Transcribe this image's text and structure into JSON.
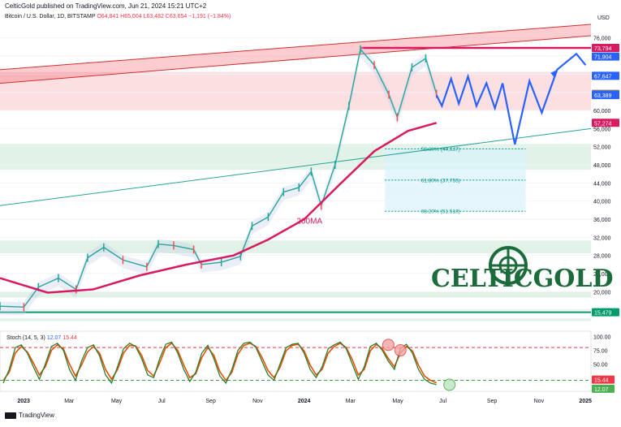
{
  "header": {
    "published": "CelticGold published on TradingView.com, Jun 21, 2024 15:21 UTC+2",
    "symbol": "Bitcoin / U.S. Dollar, 1D, BITSTAMP",
    "ohlc": "O64,841 H65,004 L63,482 C63,654 −1,191 (−1.84%)",
    "currency": "USD"
  },
  "footer": {
    "brand": "TradingView"
  },
  "logo": {
    "text": "CELTICGOLD"
  },
  "colors": {
    "price": "#26a69a",
    "bear": "#ef5350",
    "ma200": "#d81b60",
    "projection": "#2962ff",
    "resistance_band": "#f7b8bd",
    "support_band": "#c8ead2",
    "fib_box": "#d9f2fb",
    "stoch_line": "#2e7d32",
    "stoch_signal": "#e65100",
    "long_term_support": "#009c6b"
  },
  "chart_data": [
    {
      "type": "line",
      "title": "Bitcoin / U.S. Dollar, 1D, BITSTAMP",
      "x_axis_labels": [
        "2023",
        "Mar",
        "May",
        "Jul",
        "Sep",
        "Nov",
        "2024",
        "Mar",
        "May",
        "Jul",
        "Sep",
        "Nov",
        "2025"
      ],
      "y_ticks": [
        76000,
        72000,
        68000,
        64000,
        60000,
        56000,
        52000,
        48000,
        44000,
        40000,
        36000,
        32000,
        28000,
        24000,
        20000,
        16000
      ],
      "y_tick_labels": [
        "76,000",
        "72,000",
        "68,000",
        "64,000",
        "60,000",
        "56,000",
        "52,000",
        "48,000",
        "44,000",
        "40,000",
        "36,000",
        "32,000",
        "28,000",
        "24,000",
        "20,000",
        "16,000"
      ],
      "ylim": [
        12000,
        79000
      ],
      "series": [
        {
          "name": "",
          "x": [
            "2022-12-01",
            "2023-01-01",
            "2023-01-20",
            "2023-02-15",
            "2023-03-10",
            "2023-03-25",
            "2023-04-15",
            "2023-05-10",
            "2023-06-10",
            "2023-06-25",
            "2023-07-15",
            "2023-08-10",
            "2023-08-20",
            "2023-09-15",
            "2023-10-10",
            "2023-10-25",
            "2023-11-15",
            "2023-12-05",
            "2023-12-25",
            "2024-01-10",
            "2024-01-23",
            "2024-02-10",
            "2024-02-28",
            "2024-03-14",
            "2024-04-01",
            "2024-04-20",
            "2024-05-01",
            "2024-05-20",
            "2024-06-07",
            "2024-06-21"
          ],
          "values": [
            16800,
            16600,
            21000,
            23000,
            20500,
            27500,
            29800,
            27000,
            25500,
            30500,
            30200,
            29300,
            26000,
            26500,
            27800,
            34500,
            36500,
            42000,
            43000,
            46500,
            39000,
            48000,
            61000,
            73500,
            70000,
            63500,
            58500,
            69500,
            71500,
            63654
          ]
        },
        {
          "name": "200MA",
          "x": [
            "2022-12-01",
            "2023-02-01",
            "2023-04-01",
            "2023-06-01",
            "2023-08-01",
            "2023-10-01",
            "2023-11-15",
            "2024-01-01",
            "2024-02-15",
            "2024-04-01",
            "2024-05-15",
            "2024-06-21"
          ],
          "values": [
            23000,
            19800,
            20500,
            23600,
            26000,
            28000,
            31500,
            36000,
            43500,
            51000,
            55500,
            57274
          ]
        },
        {
          "name": "",
          "x": [
            "2024-06-21",
            "2024-06-28",
            "2024-07-10",
            "2024-07-20",
            "2024-08-01",
            "2024-08-12",
            "2024-08-25",
            "2024-09-05",
            "2024-09-15",
            "2024-10-01",
            "2024-10-20",
            "2024-11-05",
            "2024-11-25",
            "2024-12-20",
            "2025-01-01"
          ],
          "values": [
            63389,
            61000,
            67000,
            61500,
            67500,
            61000,
            66000,
            60500,
            66000,
            52500,
            66500,
            59500,
            69000,
            72500,
            70000
          ]
        }
      ],
      "price_labels": [
        {
          "label": "73,794",
          "value": 73794,
          "color": "#d81b60"
        },
        {
          "label": "71,904",
          "value": 71904,
          "color": "#2962ff"
        },
        {
          "label": "67,647",
          "value": 67647,
          "color": "#2962ff"
        },
        {
          "label": "63,654",
          "value": 63654,
          "color": "#787b86"
        },
        {
          "label": "63,389",
          "value": 63389,
          "color": "#2962ff"
        },
        {
          "label": "57,274",
          "value": 57274,
          "color": "#d81b60"
        },
        {
          "label": "15,479",
          "value": 15479,
          "color": "#009c6b"
        }
      ],
      "annotations": [
        {
          "text": "200MA",
          "x": "2023-12-22",
          "y": 35000
        },
        {
          "text": "38.20% (51,518)",
          "value": 51518
        },
        {
          "text": "50.00% (44,637)",
          "value": 44637
        },
        {
          "text": "61.80% (37,755)",
          "value": 37755
        }
      ],
      "horizontal_levels": [
        73794,
        51518,
        44637,
        37755,
        15479
      ],
      "zones": [
        {
          "from": 60000,
          "to": 68500
        },
        {
          "from": 46900,
          "to": 52600
        },
        {
          "from": 28500,
          "to": 31300
        },
        {
          "from": 18700,
          "to": 19900
        },
        {
          "from": 13500,
          "to": 14100
        }
      ],
      "grid": true
    },
    {
      "type": "line",
      "title": "Stoch (14, 5, 3)",
      "legend_values": [
        "12.07",
        "15.44"
      ],
      "legend_text": [
        "Stoch (14, 5, 3)",
        "12.07",
        "15.44"
      ],
      "y_tick_labels": [
        "100.00",
        "75.00",
        "50.00",
        "25.00"
      ],
      "ylim": [
        0,
        110
      ],
      "levels": [
        80,
        20
      ],
      "price_labels": [
        {
          "label": "15.44",
          "value": 15.44,
          "color": "#f23645"
        },
        {
          "label": "12.07",
          "value": 12.07,
          "color": "#4caf50"
        }
      ],
      "series": [
        {
          "name": "",
          "values": [
            15,
            40,
            80,
            85,
            70,
            45,
            22,
            50,
            82,
            88,
            75,
            40,
            20,
            55,
            80,
            85,
            65,
            30,
            15,
            45,
            78,
            88,
            82,
            60,
            30,
            25,
            60,
            86,
            90,
            70,
            40,
            18,
            35,
            70,
            84,
            60,
            28,
            15,
            40,
            75,
            88,
            90,
            80,
            55,
            30,
            20,
            50,
            80,
            86,
            88,
            70,
            40,
            25,
            45,
            78,
            85,
            90,
            78,
            50,
            22,
            45,
            82,
            88,
            75,
            55,
            40,
            78,
            86,
            70,
            40,
            22,
            15,
            12.07
          ]
        },
        {
          "name": "",
          "values": [
            20,
            35,
            70,
            82,
            72,
            52,
            30,
            45,
            75,
            85,
            78,
            50,
            28,
            48,
            72,
            82,
            70,
            40,
            22,
            40,
            70,
            84,
            83,
            66,
            38,
            28,
            52,
            80,
            88,
            75,
            48,
            25,
            32,
            62,
            80,
            66,
            36,
            20,
            35,
            68,
            84,
            88,
            82,
            62,
            38,
            25,
            44,
            74,
            84,
            86,
            74,
            48,
            30,
            40,
            70,
            82,
            88,
            80,
            58,
            30,
            40,
            74,
            86,
            78,
            60,
            45,
            70,
            82,
            74,
            48,
            28,
            20,
            15.44
          ]
        }
      ],
      "circled_points": [
        85,
        75,
        12
      ]
    }
  ]
}
